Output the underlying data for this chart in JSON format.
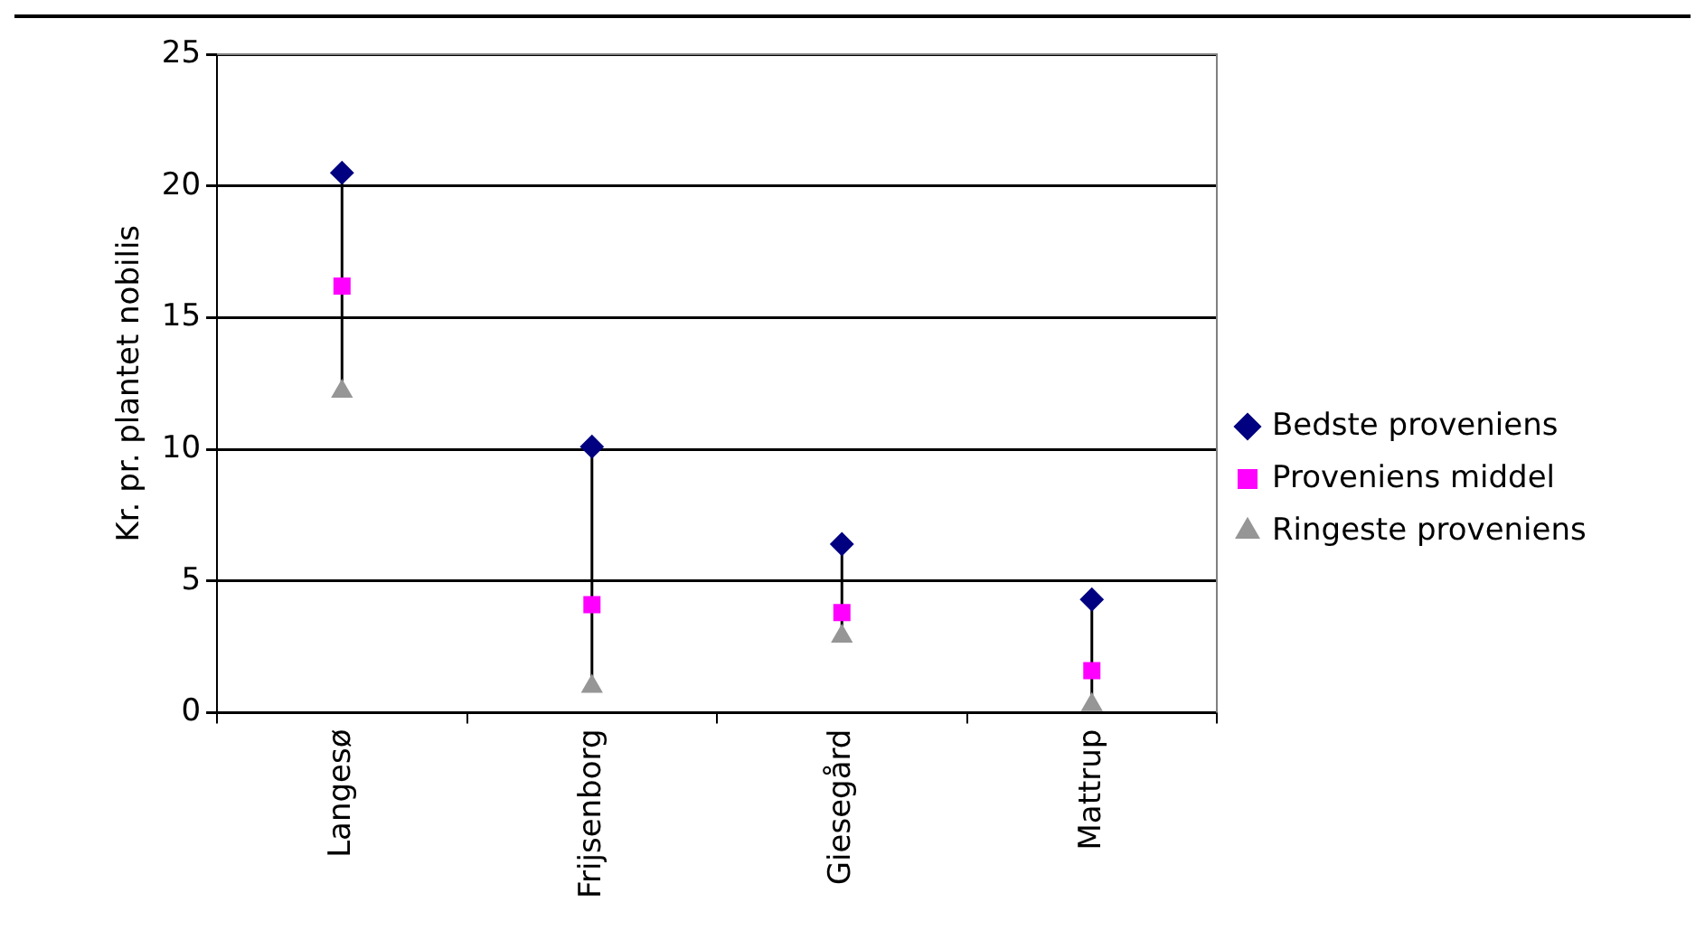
{
  "chart_data": {
    "type": "scatter",
    "ylabel": "Kr. pr. plantet nobilis",
    "categories": [
      "Langesø",
      "Frijsenborg",
      "Giesegård",
      "Mattrup"
    ],
    "series": [
      {
        "name": "Bedste proveniens",
        "color": "#000080",
        "marker": "diamond",
        "values": [
          20.5,
          10.1,
          6.4,
          4.3
        ]
      },
      {
        "name": "Proveniens middel",
        "color": "#ff00ff",
        "marker": "square",
        "values": [
          16.2,
          4.1,
          3.8,
          1.6
        ]
      },
      {
        "name": "Ringeste proveniens",
        "color": "#969696",
        "marker": "triangle",
        "values": [
          12.2,
          1.0,
          2.9,
          0.3
        ]
      }
    ],
    "ylim": [
      0,
      25
    ],
    "yticks": [
      0,
      5,
      10,
      15,
      20,
      25
    ],
    "grid": "y",
    "legend": "right"
  }
}
